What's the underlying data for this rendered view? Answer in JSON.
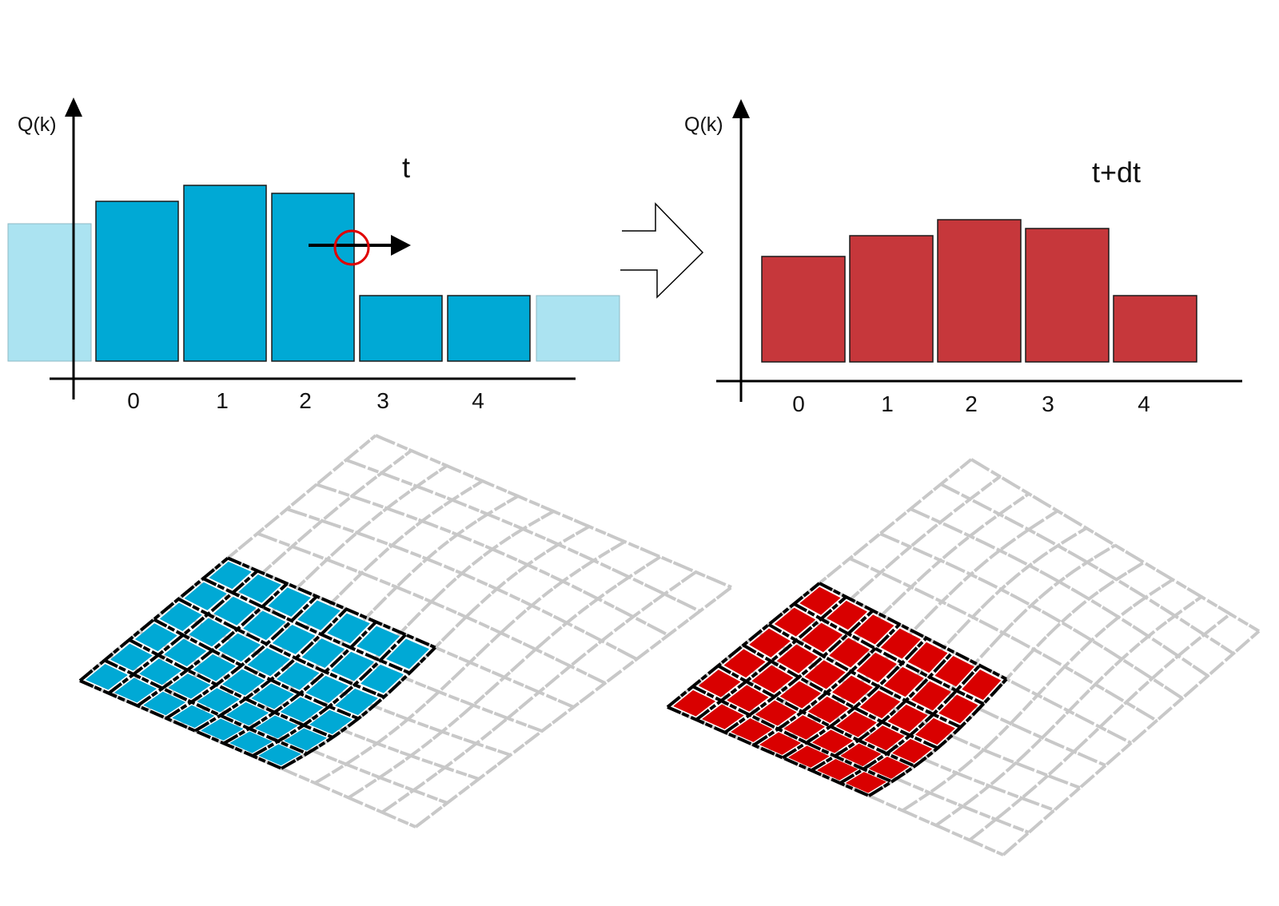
{
  "colors": {
    "blue": "#00a9d5",
    "blue_ghost": "#abe3f1",
    "red": "#c6373b",
    "red_grid": "#d90000",
    "grid_gray": "#c8c8c8",
    "marker": "#e00000"
  },
  "panel_left": {
    "time_label": "t",
    "y_axis_label": "Q(k)",
    "chart_data": {
      "type": "bar",
      "categories": [
        "0",
        "1",
        "2",
        "3",
        "4"
      ],
      "values": [
        200,
        220,
        210,
        82,
        82
      ],
      "ghost_cells": {
        "left_value": 172,
        "right_value": 82
      },
      "ylim": [
        0,
        320
      ],
      "xlabel": "",
      "ylabel": "Q(k)"
    }
  },
  "panel_right": {
    "time_label": "t+dt",
    "y_axis_label": "Q(k)",
    "chart_data": {
      "type": "bar",
      "categories": [
        "0",
        "1",
        "2",
        "3",
        "4"
      ],
      "values": [
        132,
        158,
        178,
        167,
        83
      ],
      "ylim": [
        0,
        320
      ],
      "xlabel": "",
      "ylabel": "Q(k)"
    }
  },
  "transition": {
    "icon": "outline-right-arrow-icon"
  },
  "flux_marker": {
    "icon": "flux-arrow-icon",
    "circle": "red-circle-icon"
  },
  "mesh_left": {
    "grid": [
      10,
      10
    ],
    "active": [
      6,
      7
    ],
    "fill": "blue"
  },
  "mesh_right": {
    "grid": [
      10,
      10
    ],
    "active": [
      6,
      7
    ],
    "fill": "red"
  }
}
